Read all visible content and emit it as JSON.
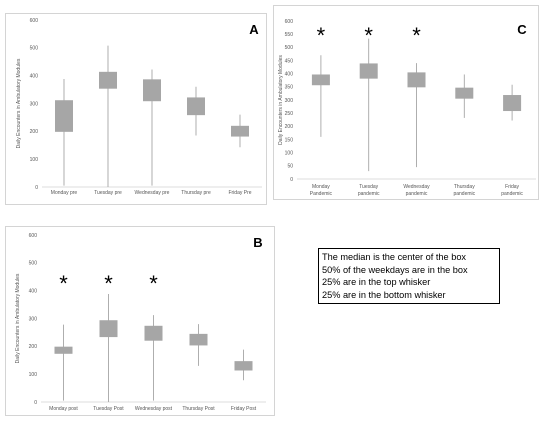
{
  "chart_data": [
    {
      "type": "box",
      "panel_label": "A",
      "ylabel": "Daily Encounters in Ambulatory Modules",
      "ylim": [
        0,
        600
      ],
      "yticks": [
        0,
        100,
        200,
        300,
        400,
        500,
        600
      ],
      "categories": [
        "Monday pre",
        "Tuesday pre",
        "Wednesday pre",
        "Thursday pre",
        "Friday Pre"
      ],
      "boxes": [
        {
          "min": 5,
          "q1": 200,
          "q3": 310,
          "max": 388
        },
        {
          "min": 0,
          "q1": 355,
          "q3": 412,
          "max": 508
        },
        {
          "min": 5,
          "q1": 310,
          "q3": 385,
          "max": 422
        },
        {
          "min": 185,
          "q1": 260,
          "q3": 320,
          "max": 360
        },
        {
          "min": 143,
          "q1": 183,
          "q3": 218,
          "max": 260
        }
      ],
      "significant": [
        false,
        false,
        false,
        false,
        false
      ],
      "box_color": "#a6a6a6",
      "grid": false
    },
    {
      "type": "box",
      "panel_label": "C",
      "ylabel": "Daily Encounters in Ambulatory Modules",
      "ylim": [
        0,
        600
      ],
      "yticks": [
        0,
        50,
        100,
        150,
        200,
        250,
        300,
        350,
        400,
        450,
        500,
        550,
        600
      ],
      "categories": [
        "Monday Pandemic",
        "Tuesday pandemic",
        "Wednesday pandemic",
        "Thursday pandemic",
        "Friday pandemic"
      ],
      "boxes": [
        {
          "min": 160,
          "q1": 358,
          "q3": 395,
          "max": 470
        },
        {
          "min": 30,
          "q1": 383,
          "q3": 437,
          "max": 533
        },
        {
          "min": 45,
          "q1": 350,
          "q3": 403,
          "max": 440
        },
        {
          "min": 232,
          "q1": 307,
          "q3": 345,
          "max": 397
        },
        {
          "min": 222,
          "q1": 260,
          "q3": 317,
          "max": 358
        }
      ],
      "significant": [
        true,
        true,
        true,
        false,
        false
      ],
      "box_color": "#a6a6a6",
      "grid": false
    },
    {
      "type": "box",
      "panel_label": "B",
      "ylabel": "Daily Encounters in Ambulatory Modules",
      "ylim": [
        0,
        600
      ],
      "yticks": [
        0,
        100,
        200,
        300,
        400,
        500,
        600
      ],
      "categories": [
        "Monday post",
        "Tuesday Post",
        "Wednesday post",
        "Thursday Post",
        "Friday Post"
      ],
      "boxes": [
        {
          "min": 5,
          "q1": 175,
          "q3": 197,
          "max": 278
        },
        {
          "min": 0,
          "q1": 235,
          "q3": 292,
          "max": 388
        },
        {
          "min": 5,
          "q1": 222,
          "q3": 272,
          "max": 312
        },
        {
          "min": 130,
          "q1": 205,
          "q3": 243,
          "max": 280
        },
        {
          "min": 78,
          "q1": 115,
          "q3": 145,
          "max": 188
        }
      ],
      "significant": [
        true,
        true,
        true,
        false,
        false
      ],
      "box_color": "#a6a6a6",
      "grid": false
    }
  ],
  "legend": {
    "lines": [
      "The median is the center of the box",
      "50% of the weekdays are in the box",
      "25% are in the top whisker",
      "25% are in the bottom whisker"
    ]
  }
}
